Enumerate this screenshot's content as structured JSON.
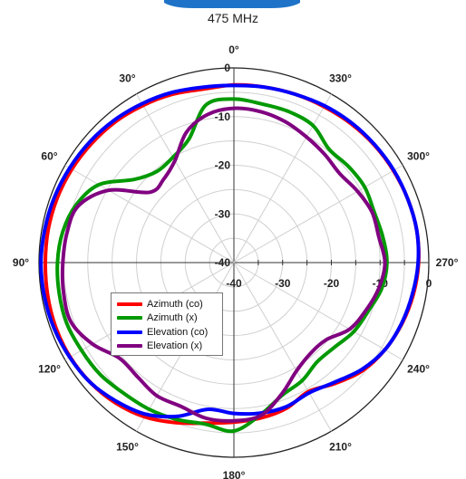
{
  "chart_data": {
    "type": "polar-line",
    "title": "475 MHz",
    "angle_unit": "deg",
    "angle_direction": "counterclockwise",
    "angle_zero": "top",
    "angle_ticks": [
      0,
      30,
      60,
      90,
      120,
      150,
      180,
      210,
      240,
      270,
      300,
      330
    ],
    "angle_tick_labels": [
      "0°",
      "30°",
      "60°",
      "90°",
      "120°",
      "150°",
      "180°",
      "210°",
      "240°",
      "270°",
      "300°",
      "330°"
    ],
    "radial_unit": "dB",
    "radial_range": [
      -40,
      0
    ],
    "radial_ticks": [
      -40,
      -30,
      -20,
      -10,
      0
    ],
    "radial_tick_labels": [
      "-40",
      "-30",
      "-20",
      "-10",
      "0"
    ],
    "grid": true,
    "legend_position": "lower-left",
    "angles": [
      0,
      10,
      20,
      30,
      40,
      50,
      60,
      70,
      80,
      90,
      100,
      110,
      120,
      130,
      140,
      150,
      160,
      170,
      180,
      190,
      200,
      210,
      220,
      230,
      240,
      250,
      260,
      270,
      280,
      290,
      300,
      310,
      320,
      330,
      340,
      350
    ],
    "series": [
      {
        "name": "Azimuth (co)",
        "color": "#ff0000",
        "values": [
          -3.5,
          -3.8,
          -3.2,
          -2.7,
          -2.2,
          -1.9,
          -1.6,
          -1.4,
          -1.3,
          -1.3,
          -1.2,
          -1.1,
          -1.2,
          -1.6,
          -2.3,
          -3.4,
          -5.0,
          -6.5,
          -7.2,
          -7.6,
          -8.2,
          -9.4,
          -7.6,
          -5.5,
          -4.2,
          -3.3,
          -2.6,
          -2.1,
          -1.9,
          -2.0,
          -2.2,
          -2.4,
          -2.7,
          -3.0,
          -3.2,
          -3.4
        ]
      },
      {
        "name": "Azimuth (x)",
        "color": "#009900",
        "values": [
          -6.4,
          -7.1,
          -13.0,
          -15.0,
          -15.5,
          -13.4,
          -8.0,
          -5.5,
          -4.3,
          -3.8,
          -3.6,
          -3.5,
          -3.9,
          -4.2,
          -4.9,
          -5.2,
          -5.7,
          -6.3,
          -5.4,
          -8.3,
          -11.0,
          -12.0,
          -13.4,
          -13.0,
          -11.6,
          -10.7,
          -9.2,
          -8.6,
          -9.0,
          -9.4,
          -9.0,
          -9.3,
          -9.6,
          -7.5,
          -7.0,
          -6.9
        ]
      },
      {
        "name": "Elevation (co)",
        "color": "#0000ff",
        "values": [
          -3.6,
          -3.4,
          -2.8,
          -2.3,
          -1.8,
          -1.4,
          -1.1,
          -0.8,
          -0.6,
          -0.4,
          -0.5,
          -0.7,
          -1.1,
          -1.6,
          -2.7,
          -4.0,
          -6.4,
          -9.4,
          -9.0,
          -8.6,
          -8.5,
          -9.1,
          -7.9,
          -5.8,
          -4.2,
          -3.4,
          -2.8,
          -2.2,
          -1.9,
          -2.0,
          -2.1,
          -2.3,
          -2.5,
          -2.8,
          -3.2,
          -3.4
        ]
      },
      {
        "name": "Elevation (x)",
        "color": "#800080",
        "values": [
          -8.3,
          -9.1,
          -11.5,
          -15.8,
          -17.6,
          -17.5,
          -10.3,
          -6.0,
          -5.2,
          -4.9,
          -4.5,
          -4.4,
          -6.5,
          -9.4,
          -9.3,
          -8.4,
          -8.5,
          -7.5,
          -7.5,
          -8.1,
          -11.3,
          -14.3,
          -15.6,
          -15.3,
          -12.6,
          -11.2,
          -9.8,
          -9.0,
          -9.8,
          -9.8,
          -10.7,
          -11.6,
          -11.0,
          -10.2,
          -9.2,
          -8.5
        ]
      }
    ]
  }
}
